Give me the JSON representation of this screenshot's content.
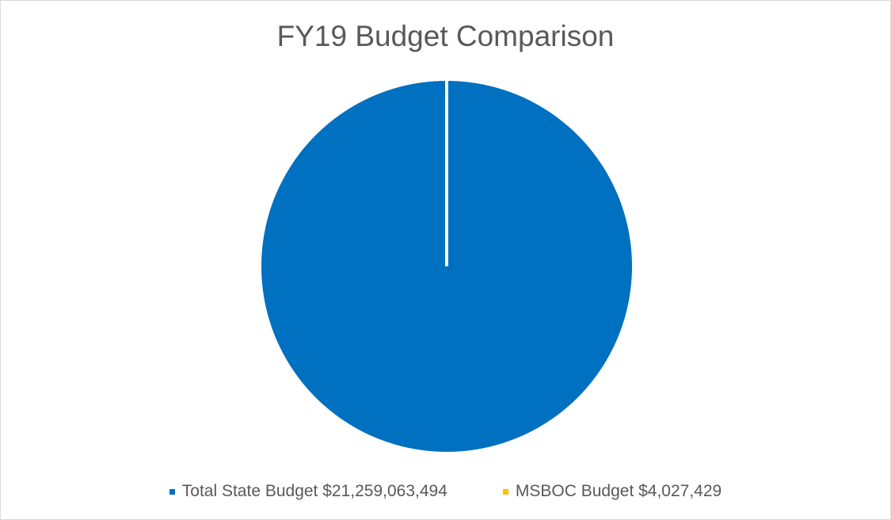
{
  "chart_data": {
    "type": "pie",
    "title": "FY19 Budget Comparison",
    "slices": [
      {
        "label": "Total State Budget $21,259,063,494",
        "value": 21259063494,
        "color": "#0070c0"
      },
      {
        "label": "MSBOC Budget $4,027,429",
        "value": 4027429,
        "color": "#ffc000"
      }
    ],
    "legend_position": "bottom",
    "slice_border_color": "#ffffff"
  }
}
